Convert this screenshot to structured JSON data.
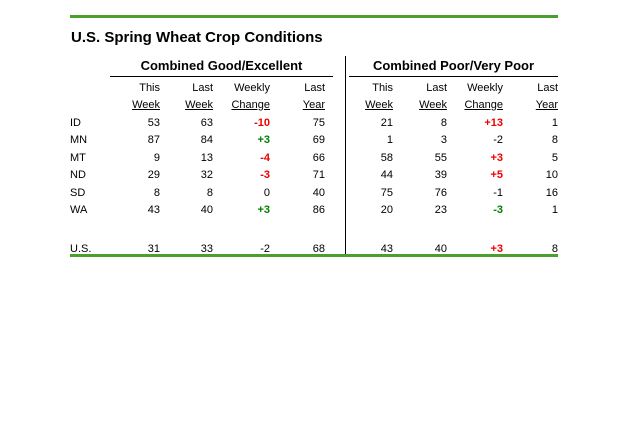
{
  "title": "U.S. Spring Wheat Crop Conditions",
  "colors": {
    "accent_line": "#4AA02C",
    "red": "#EE0000",
    "green": "#008000",
    "neutral": "#000000"
  },
  "chart_data": {
    "type": "table",
    "title": "U.S. Spring Wheat Crop Conditions",
    "sections": [
      "Combined Good/Excellent",
      "Combined Poor/Very Poor"
    ],
    "column_headers_line1": [
      "This",
      "Last",
      "Weekly",
      "Last"
    ],
    "column_headers_line2": [
      "Week",
      "Week",
      "Change",
      "Year"
    ],
    "rows": [
      {
        "state": "ID",
        "good": [
          "53",
          "63",
          "-10",
          "75"
        ],
        "good_change_color": "red",
        "poor": [
          "21",
          "8",
          "+13",
          "1"
        ],
        "poor_change_color": "red"
      },
      {
        "state": "MN",
        "good": [
          "87",
          "84",
          "+3",
          "69"
        ],
        "good_change_color": "green",
        "poor": [
          "1",
          "3",
          "-2",
          "8"
        ],
        "poor_change_color": "neutral"
      },
      {
        "state": "MT",
        "good": [
          "9",
          "13",
          "-4",
          "66"
        ],
        "good_change_color": "red",
        "poor": [
          "58",
          "55",
          "+3",
          "5"
        ],
        "poor_change_color": "red"
      },
      {
        "state": "ND",
        "good": [
          "29",
          "32",
          "-3",
          "71"
        ],
        "good_change_color": "red",
        "poor": [
          "44",
          "39",
          "+5",
          "10"
        ],
        "poor_change_color": "red"
      },
      {
        "state": "SD",
        "good": [
          "8",
          "8",
          "0",
          "40"
        ],
        "good_change_color": "neutral",
        "poor": [
          "75",
          "76",
          "-1",
          "16"
        ],
        "poor_change_color": "neutral"
      },
      {
        "state": "WA",
        "good": [
          "43",
          "40",
          "+3",
          "86"
        ],
        "good_change_color": "green",
        "poor": [
          "20",
          "23",
          "-3",
          "1"
        ],
        "poor_change_color": "green"
      }
    ],
    "summary": {
      "state": "U.S.",
      "good": [
        "31",
        "33",
        "-2",
        "68"
      ],
      "good_change_color": "neutral",
      "poor": [
        "43",
        "40",
        "+3",
        "8"
      ],
      "poor_change_color": "red"
    }
  }
}
